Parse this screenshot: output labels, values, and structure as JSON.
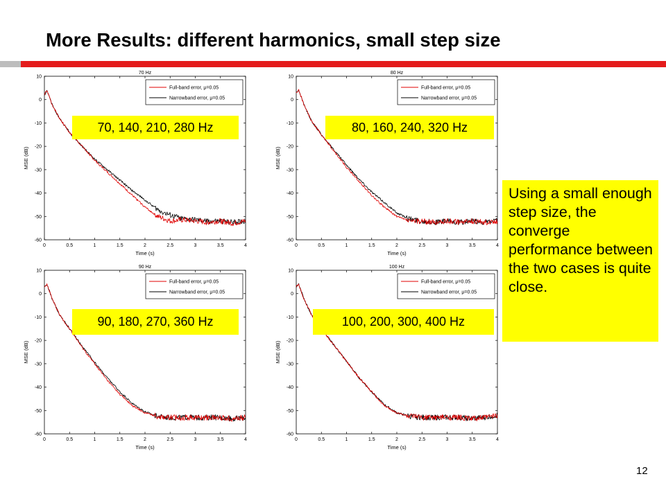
{
  "slide": {
    "title": "More Results: different harmonics, small step size",
    "note": "Using a small enough step size, the converge performance between the two cases is quite close.",
    "page_number": "12"
  },
  "colors": {
    "full_band": "#e00000",
    "narrowband": "#000000",
    "highlight": "#ffff00",
    "title_rule": "#e41b1b"
  },
  "chart_data": [
    {
      "type": "line",
      "title": "70 Hz",
      "annotation": "70, 140, 210, 280 Hz",
      "xlabel": "Time (s)",
      "ylabel": "MSE (dB)",
      "xlim": [
        0,
        4
      ],
      "ylim": [
        -60,
        10
      ],
      "xticks": [
        0,
        0.5,
        1,
        1.5,
        2,
        2.5,
        3,
        3.5,
        4
      ],
      "yticks": [
        10,
        0,
        -10,
        -20,
        -30,
        -40,
        -50,
        -60
      ],
      "xtick_labels": [
        "0",
        "0.5",
        "1",
        "1.5",
        "2",
        "2.5",
        "3",
        "3.5",
        "4"
      ],
      "ytick_labels": [
        "10",
        "0",
        "-10",
        "-20",
        "-30",
        "-40",
        "-50",
        "-60"
      ],
      "legend_position": "top-right",
      "grid": false,
      "series": [
        {
          "name": "Full-band error, μ=0.05",
          "key": "full_band",
          "x": [
            0,
            0.05,
            0.15,
            0.3,
            0.5,
            0.75,
            1.0,
            1.25,
            1.5,
            1.75,
            2.0,
            2.25,
            2.5,
            2.75,
            3.0,
            3.25,
            3.5,
            3.75,
            4.0
          ],
          "y": [
            2,
            4,
            -2,
            -8,
            -14,
            -20,
            -26,
            -31,
            -36,
            -41,
            -46,
            -50,
            -52,
            -51.5,
            -52,
            -52.5,
            -52,
            -53,
            -52
          ]
        },
        {
          "name": "Narrowband error, μ=0.05",
          "key": "narrowband",
          "x": [
            0,
            0.05,
            0.15,
            0.3,
            0.5,
            0.75,
            1.0,
            1.25,
            1.5,
            1.75,
            2.0,
            2.25,
            2.5,
            2.75,
            3.0,
            3.25,
            3.5,
            3.75,
            4.0
          ],
          "y": [
            2,
            4,
            -2,
            -8,
            -14,
            -20,
            -25.5,
            -30,
            -34.5,
            -39,
            -43,
            -47,
            -49.5,
            -51,
            -51.5,
            -52,
            -52,
            -52.5,
            -52
          ]
        }
      ]
    },
    {
      "type": "line",
      "title": "80 Hz",
      "annotation": "80, 160, 240, 320 Hz",
      "xlabel": "Time (s)",
      "ylabel": "MSE (dB)",
      "xlim": [
        0,
        4
      ],
      "ylim": [
        -60,
        10
      ],
      "xticks": [
        0,
        0.5,
        1,
        1.5,
        2,
        2.5,
        3,
        3.5,
        4
      ],
      "yticks": [
        10,
        0,
        -10,
        -20,
        -30,
        -40,
        -50,
        -60
      ],
      "xtick_labels": [
        "0",
        "0.5",
        "1",
        "1.5",
        "2",
        "2.5",
        "3",
        "3.5",
        "4"
      ],
      "ytick_labels": [
        "10",
        "0",
        "-10",
        "-20",
        "-30",
        "-40",
        "-50",
        "-60"
      ],
      "legend_position": "top-right",
      "grid": false,
      "series": [
        {
          "name": "Full-band error, μ=0.05",
          "key": "full_band",
          "x": [
            0,
            0.05,
            0.15,
            0.3,
            0.5,
            0.75,
            1.0,
            1.25,
            1.5,
            1.75,
            2.0,
            2.25,
            2.5,
            2.75,
            3.0,
            3.25,
            3.5,
            3.75,
            4.0
          ],
          "y": [
            3,
            4,
            -2,
            -9,
            -15,
            -22,
            -29,
            -35,
            -41,
            -46,
            -50,
            -52,
            -52,
            -52.5,
            -52,
            -52.5,
            -52,
            -52.5,
            -52
          ]
        },
        {
          "name": "Narrowband error, μ=0.05",
          "key": "narrowband",
          "x": [
            0,
            0.05,
            0.15,
            0.3,
            0.5,
            0.75,
            1.0,
            1.25,
            1.5,
            1.75,
            2.0,
            2.25,
            2.5,
            2.75,
            3.0,
            3.25,
            3.5,
            3.75,
            4.0
          ],
          "y": [
            3,
            4,
            -2,
            -9,
            -15,
            -21.5,
            -28,
            -34,
            -39.5,
            -44,
            -48.5,
            -51,
            -52,
            -52.5,
            -52,
            -52.5,
            -52,
            -52.5,
            -52
          ]
        }
      ]
    },
    {
      "type": "line",
      "title": "90 Hz",
      "annotation": "90, 180, 270, 360 Hz",
      "xlabel": "Time (s)",
      "ylabel": "MSE (dB)",
      "xlim": [
        0,
        4
      ],
      "ylim": [
        -60,
        10
      ],
      "xticks": [
        0,
        0.5,
        1,
        1.5,
        2,
        2.5,
        3,
        3.5,
        4
      ],
      "yticks": [
        10,
        0,
        -10,
        -20,
        -30,
        -40,
        -50,
        -60
      ],
      "xtick_labels": [
        "0",
        "0.5",
        "1",
        "1.5",
        "2",
        "2.5",
        "3",
        "3.5",
        "4"
      ],
      "ytick_labels": [
        "10",
        "0",
        "-10",
        "-20",
        "-30",
        "-40",
        "-50",
        "-60"
      ],
      "legend_position": "top-right",
      "grid": false,
      "series": [
        {
          "name": "Full-band error, μ=0.05",
          "key": "full_band",
          "x": [
            0,
            0.05,
            0.15,
            0.3,
            0.5,
            0.75,
            1.0,
            1.25,
            1.5,
            1.75,
            2.0,
            2.25,
            2.5,
            2.75,
            3.0,
            3.25,
            3.5,
            3.75,
            4.0
          ],
          "y": [
            3,
            4,
            -2,
            -9,
            -15,
            -23,
            -30,
            -37,
            -43,
            -48,
            -51,
            -52.5,
            -53,
            -53,
            -53,
            -53,
            -53,
            -53.5,
            -53
          ]
        },
        {
          "name": "Narrowband error, μ=0.05",
          "key": "narrowband",
          "x": [
            0,
            0.05,
            0.15,
            0.3,
            0.5,
            0.75,
            1.0,
            1.25,
            1.5,
            1.75,
            2.0,
            2.25,
            2.5,
            2.75,
            3.0,
            3.25,
            3.5,
            3.75,
            4.0
          ],
          "y": [
            3,
            4,
            -2,
            -9,
            -15,
            -22.5,
            -29.5,
            -36,
            -42,
            -47,
            -50.5,
            -52.5,
            -53,
            -53,
            -53,
            -53,
            -53,
            -53.5,
            -53
          ]
        }
      ]
    },
    {
      "type": "line",
      "title": "100 Hz",
      "annotation": "100, 200, 300, 400 Hz",
      "xlabel": "Time (s)",
      "ylabel": "MSE (dB)",
      "xlim": [
        0,
        4
      ],
      "ylim": [
        -60,
        10
      ],
      "xticks": [
        0,
        0.5,
        1,
        1.5,
        2,
        2.5,
        3,
        3.5,
        4
      ],
      "yticks": [
        10,
        0,
        -10,
        -20,
        -30,
        -40,
        -50,
        -60
      ],
      "xtick_labels": [
        "0",
        "0.5",
        "1",
        "1.5",
        "2",
        "2.5",
        "3",
        "3.5",
        "4"
      ],
      "ytick_labels": [
        "10",
        "0",
        "-10",
        "-20",
        "-30",
        "-40",
        "-50",
        "-60"
      ],
      "legend_position": "top-right",
      "grid": false,
      "series": [
        {
          "name": "Full-band error, μ=0.05",
          "key": "full_band",
          "x": [
            0,
            0.05,
            0.15,
            0.3,
            0.5,
            0.75,
            1.0,
            1.25,
            1.5,
            1.75,
            2.0,
            2.25,
            2.5,
            2.75,
            3.0,
            3.25,
            3.5,
            3.75,
            4.0
          ],
          "y": [
            3,
            4,
            -2,
            -9,
            -15,
            -22,
            -29,
            -36,
            -42,
            -48,
            -51,
            -52.5,
            -53,
            -53,
            -53,
            -53,
            -53.5,
            -53,
            -52
          ]
        },
        {
          "name": "Narrowband error, μ=0.05",
          "key": "narrowband",
          "x": [
            0,
            0.05,
            0.15,
            0.3,
            0.5,
            0.75,
            1.0,
            1.25,
            1.5,
            1.75,
            2.0,
            2.25,
            2.5,
            2.75,
            3.0,
            3.25,
            3.5,
            3.75,
            4.0
          ],
          "y": [
            3,
            4,
            -2,
            -9,
            -15,
            -22,
            -29,
            -36,
            -42,
            -47.5,
            -51,
            -52.5,
            -53,
            -53,
            -53,
            -53,
            -53.5,
            -53,
            -52
          ]
        }
      ]
    }
  ]
}
